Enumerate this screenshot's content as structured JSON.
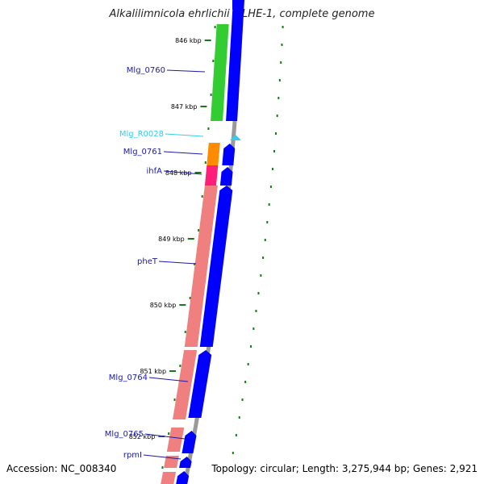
{
  "title": "Alkalilimnicola ehrlichii MLHE-1, complete genome",
  "footer": {
    "accession": "Accession: NC_008340",
    "summary": "Topology: circular; Length: 3,275,944 bp; Genes: 2,921"
  },
  "colors": {
    "tick": "#1a7a1a",
    "gene_label": "#1a1aa6",
    "rna_label": "#33ccee",
    "cds_forward": "#0000ff",
    "backbone": "#999999",
    "green_gene": "#33cc33",
    "orange_gene": "#ff8c00",
    "pink_gene": "#ff1f7a",
    "salmon_gene": "#f08080"
  },
  "ticks": [
    {
      "kbp": 846,
      "label": "846 kbp"
    },
    {
      "kbp": 847,
      "label": "847 kbp"
    },
    {
      "kbp": 848,
      "label": "848 kbp"
    },
    {
      "kbp": 849,
      "label": "849 kbp"
    },
    {
      "kbp": 850,
      "label": "850 kbp"
    },
    {
      "kbp": 851,
      "label": "851 kbp"
    },
    {
      "kbp": 852,
      "label": "852 kbp"
    }
  ],
  "genes": [
    {
      "name": "Mlg_0760",
      "type": "cds"
    },
    {
      "name": "Mlg_R0028",
      "type": "rna"
    },
    {
      "name": "Mlg_0761",
      "type": "cds"
    },
    {
      "name": "ihfA",
      "type": "cds"
    },
    {
      "name": "pheT",
      "type": "cds"
    },
    {
      "name": "Mlg_0764",
      "type": "cds"
    },
    {
      "name": "Mlg_0765",
      "type": "cds"
    },
    {
      "name": "rpmI",
      "type": "cds"
    }
  ]
}
